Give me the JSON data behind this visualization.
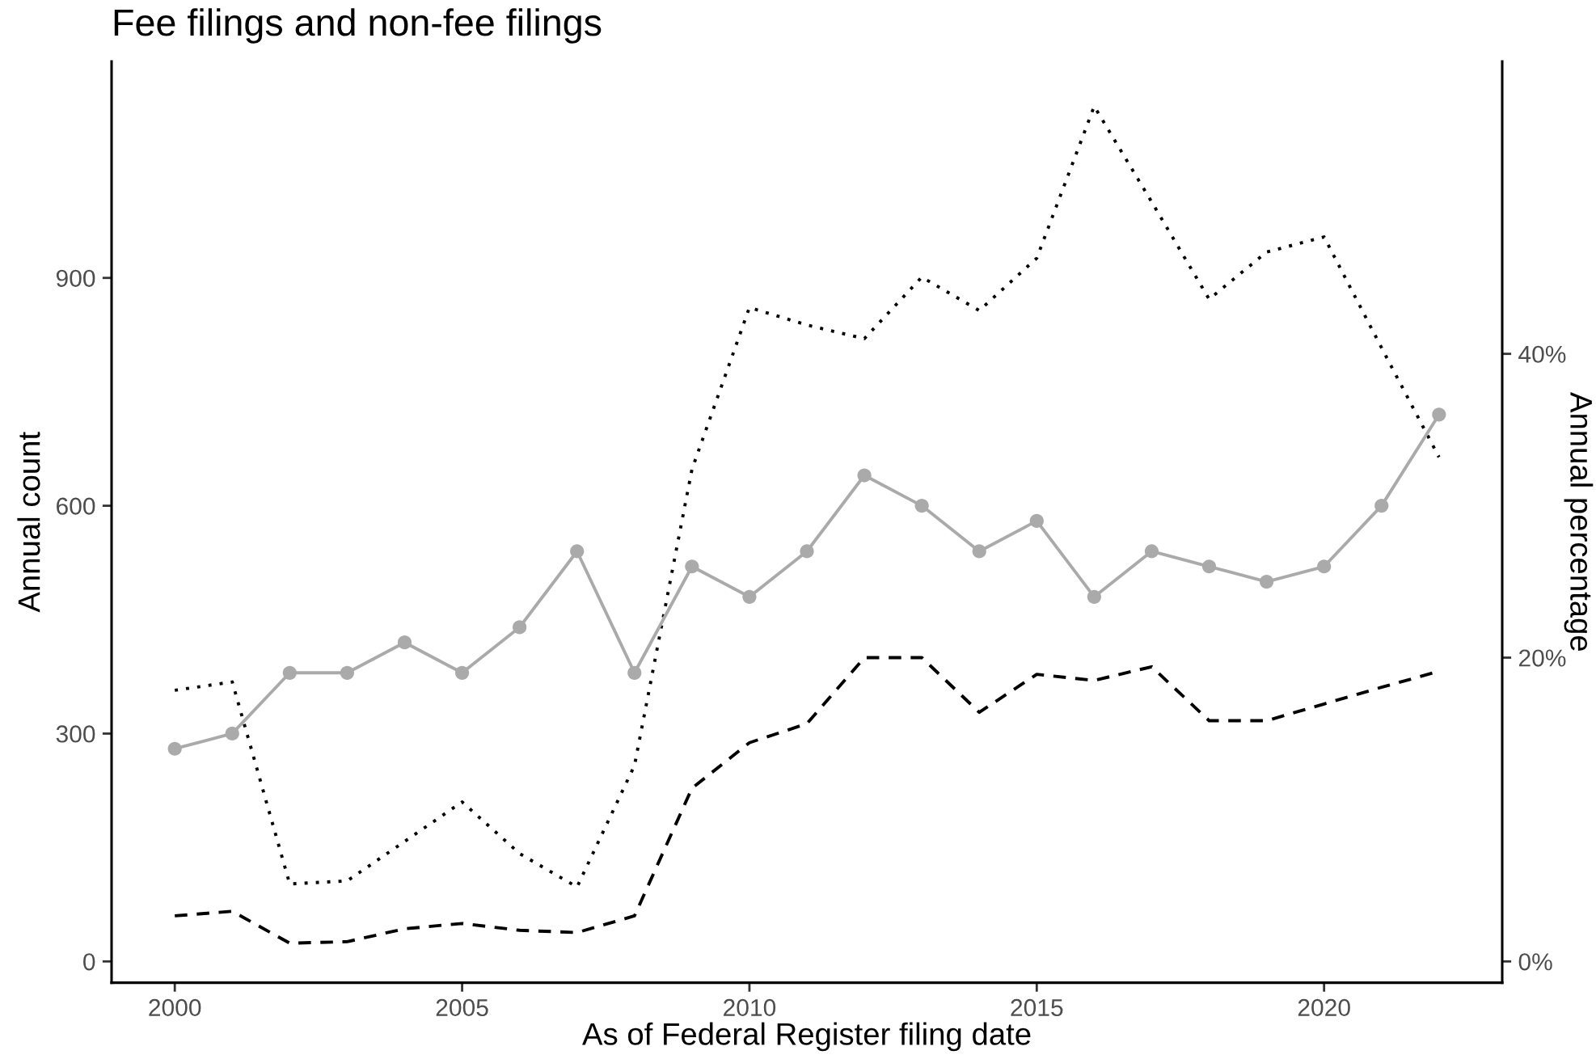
{
  "chart_data": {
    "type": "line",
    "title": "Fee filings and non-fee filings",
    "xlabel": "As of Federal Register filing date",
    "ylabel": "Annual count",
    "y2label": "Annual percentage",
    "x": [
      2000,
      2001,
      2002,
      2003,
      2004,
      2005,
      2006,
      2007,
      2008,
      2009,
      2010,
      2011,
      2012,
      2013,
      2014,
      2015,
      2016,
      2017,
      2018,
      2019,
      2020,
      2021,
      2022
    ],
    "series": [
      {
        "color": "#000000",
        "line_style": "dotted",
        "values": [
          357,
          368,
          102,
          106,
          158,
          210,
          142,
          98,
          258,
          648,
          861,
          838,
          820,
          901,
          857,
          926,
          1126,
          1000,
          872,
          934,
          954,
          808,
          664
        ]
      },
      {
        "color": "#000000",
        "line_style": "dashed",
        "values": [
          60,
          66,
          24,
          26,
          43,
          50,
          41,
          38,
          60,
          228,
          288,
          313,
          400,
          400,
          328,
          378,
          370,
          388,
          317,
          317,
          339,
          361,
          382
        ]
      },
      {
        "color": "#aaaaaa",
        "line_style": "solid",
        "marker": "circle",
        "axis": "y2",
        "values": [
          14,
          15,
          19,
          19,
          21,
          19,
          22,
          27,
          19,
          26,
          24,
          27,
          32,
          30,
          27,
          29,
          24,
          27,
          26,
          25,
          26,
          30,
          36
        ]
      }
    ],
    "xlim": [
      1998.9,
      2023.1
    ],
    "ylim": [
      -28,
      1185
    ],
    "y2lim": [
      -1.4,
      59.25
    ],
    "xticks": [
      2000,
      2005,
      2010,
      2015,
      2020
    ],
    "yticks": [
      0,
      300,
      600,
      900
    ],
    "y2ticks": [
      {
        "value": 0,
        "label": "0%"
      },
      {
        "value": 20,
        "label": "20%"
      },
      {
        "value": 40,
        "label": "40%"
      }
    ]
  }
}
